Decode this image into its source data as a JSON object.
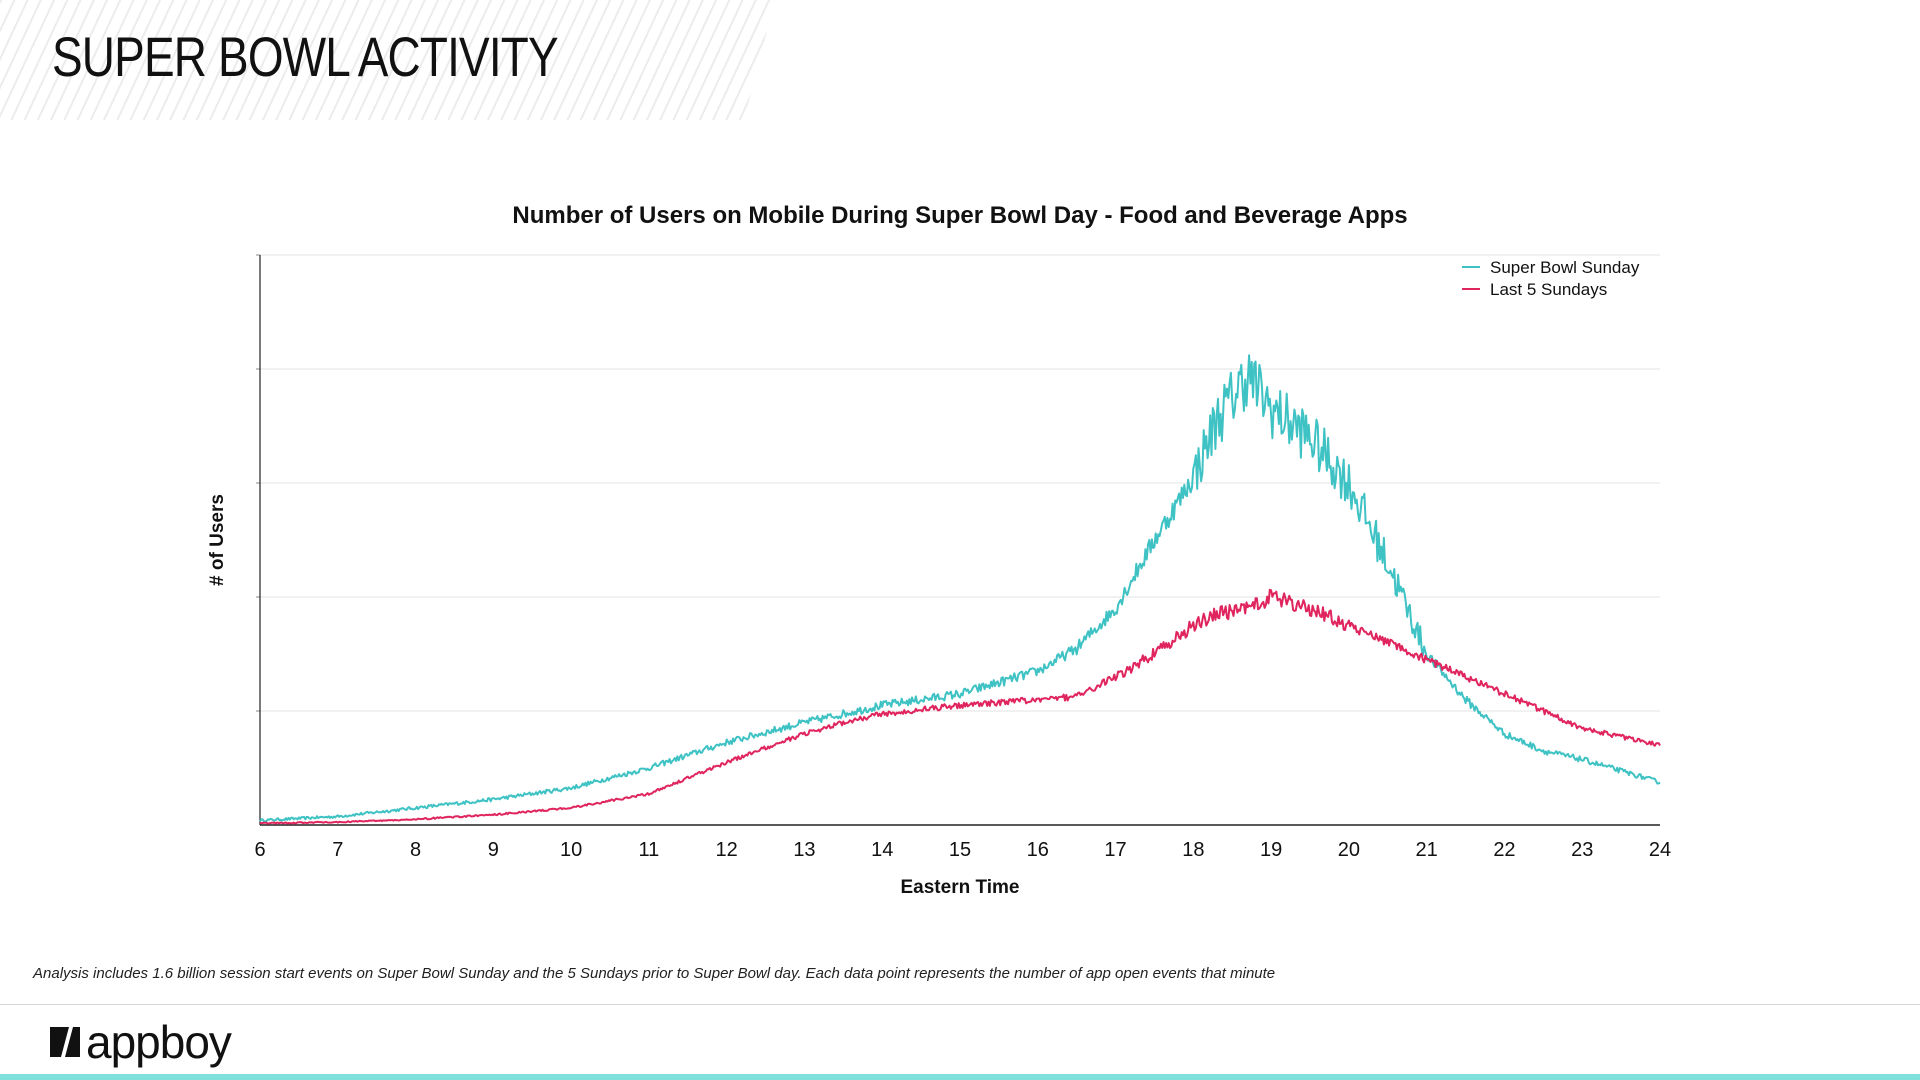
{
  "page": {
    "title": "SUPER BOWL ACTIVITY",
    "footnote": "Analysis includes 1.6 billion session start events on Super Bowl Sunday and the 5 Sundays prior to Super Bowl day.  Each data point represents the number of app open events that minute",
    "brand": {
      "name": "appboy",
      "logo_icon": "appboy-logo-icon"
    }
  },
  "colors": {
    "super_bowl": "#3fc2c4",
    "last_5": "#e0245e",
    "accent_bar": "#7fe0dc",
    "gridline": "#e3e3e3",
    "axis": "#222222"
  },
  "chart_data": {
    "type": "line",
    "title": "Number of Users on Mobile During Super Bowl Day - Food and Beverage Apps",
    "xlabel": "Eastern Time",
    "ylabel": "# of Users",
    "xlim": [
      6,
      24
    ],
    "ylim": [
      0,
      100
    ],
    "y_units": "relative (unlabeled axis)",
    "grid": true,
    "legend_position": "top-right",
    "x_ticks": [
      "6",
      "7",
      "8",
      "9",
      "10",
      "11",
      "12",
      "13",
      "14",
      "15",
      "16",
      "17",
      "18",
      "19",
      "20",
      "21",
      "22",
      "23",
      "24"
    ],
    "x": [
      6,
      7,
      8,
      9,
      10,
      11,
      12,
      13,
      13.5,
      14,
      15,
      16,
      16.5,
      17,
      17.5,
      18,
      18.3,
      18.7,
      19,
      19.5,
      20,
      20.5,
      21,
      21.5,
      22,
      22.5,
      23,
      23.5,
      24
    ],
    "series": [
      {
        "name": "Super Bowl Sunday",
        "color": "#3fc2c4",
        "values": [
          0.8,
          1.5,
          3,
          4.5,
          6.5,
          10,
          14.5,
          18,
          19.5,
          21,
          23,
          27,
          31,
          38,
          50,
          61,
          71,
          79,
          73,
          68,
          60,
          46,
          30,
          22,
          16,
          13,
          11.5,
          9.5,
          7.5
        ]
      },
      {
        "name": "Last 5 Sundays",
        "color": "#e0245e",
        "values": [
          0.3,
          0.5,
          1,
          1.8,
          3,
          5.5,
          11,
          16,
          18,
          19.5,
          21,
          22,
          22.5,
          26,
          30,
          35,
          37,
          38,
          40,
          38,
          35,
          32,
          29,
          26,
          23,
          20,
          17,
          15.5,
          14
        ]
      }
    ]
  }
}
